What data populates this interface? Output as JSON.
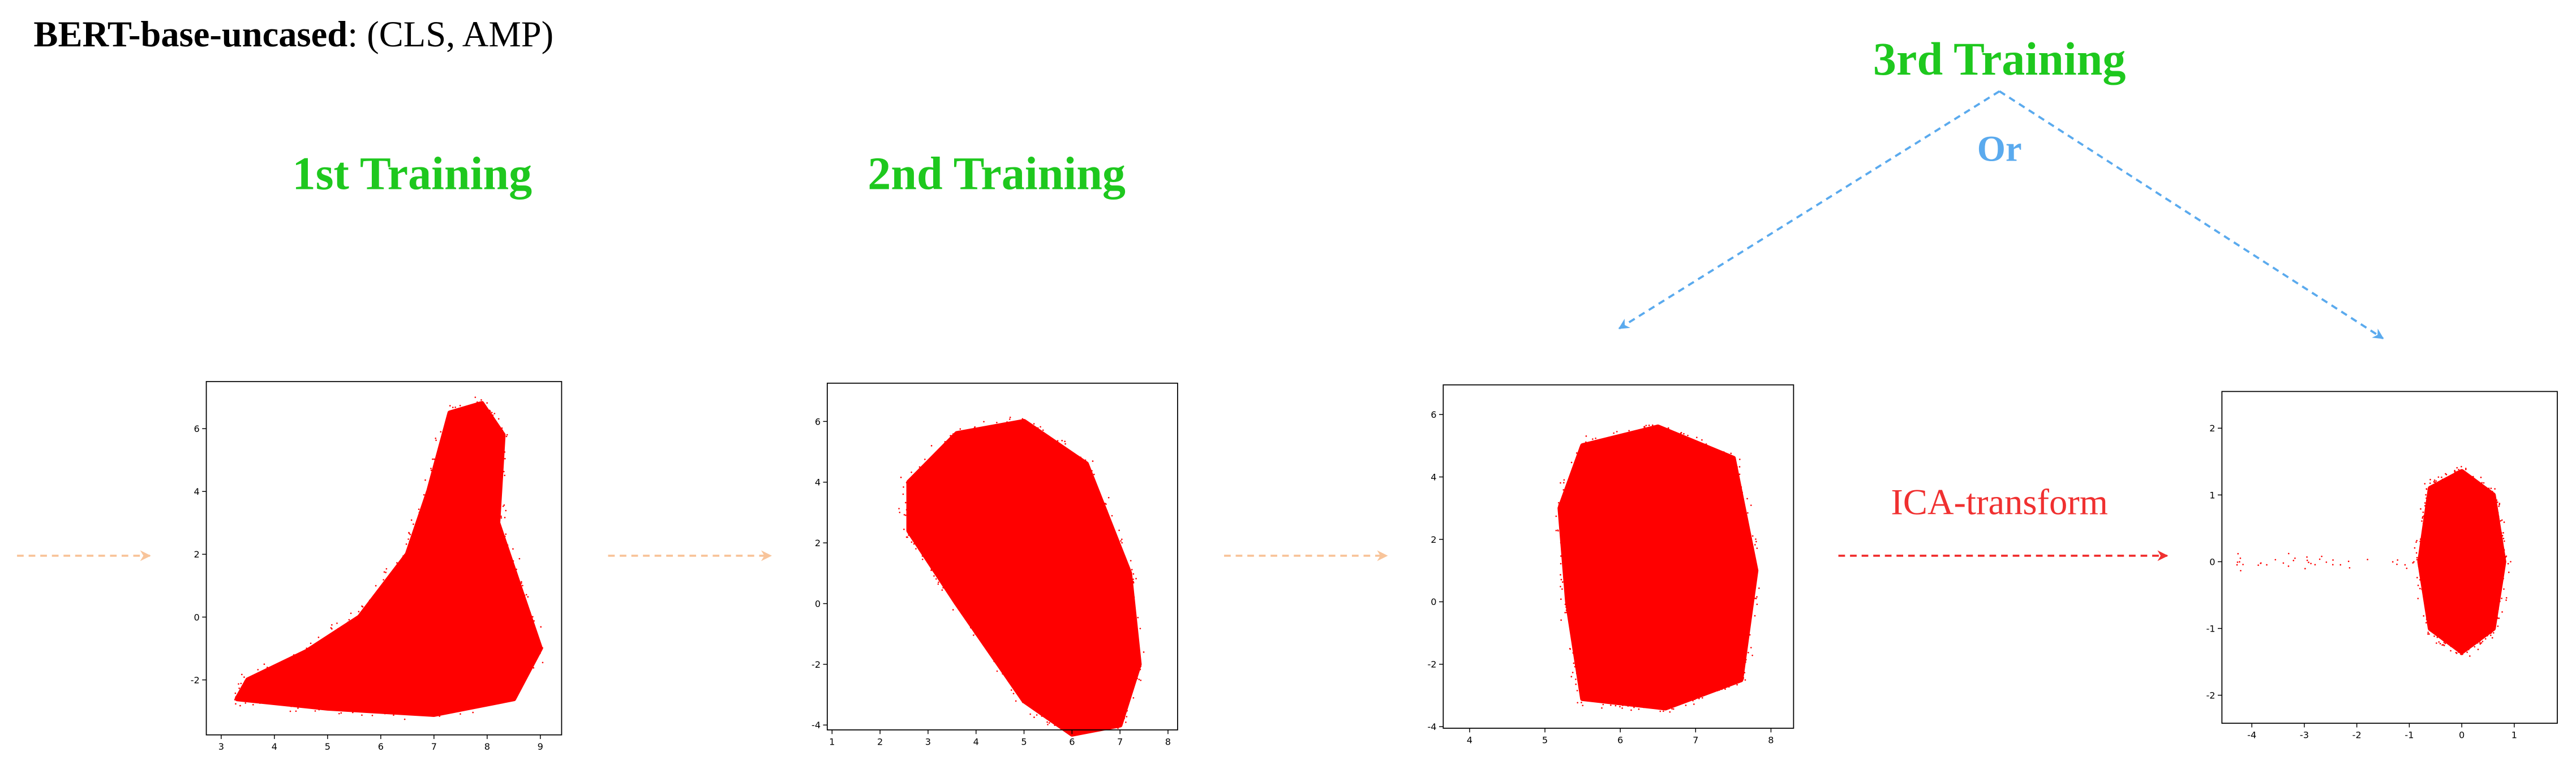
{
  "header": {
    "title_bold": "BERT-base-uncased",
    "title_rest": ": (CLS, AMP)"
  },
  "stages": [
    {
      "label": "1st Training"
    },
    {
      "label": "2nd Training"
    },
    {
      "label": "3rd Training"
    }
  ],
  "or_label": "Or",
  "transform_label": "ICA-transform",
  "plots": [
    {
      "xlim": [
        2.72,
        9.4
      ],
      "ylim": [
        -3.75,
        7.5
      ],
      "xticks": [
        3,
        4,
        5,
        6,
        7,
        8,
        9
      ],
      "yticks": [
        -2,
        0,
        2,
        4,
        6
      ]
    },
    {
      "xlim": [
        0.9,
        8.2
      ],
      "ylim": [
        -4.16,
        7.26
      ],
      "xticks": [
        1,
        2,
        3,
        4,
        5,
        6,
        7,
        8
      ],
      "yticks": [
        -4,
        -2,
        0,
        2,
        4,
        6
      ]
    },
    {
      "xlim": [
        3.65,
        8.3
      ],
      "ylim": [
        -4.05,
        6.95
      ],
      "xticks": [
        4,
        5,
        6,
        7,
        8
      ],
      "yticks": [
        -4,
        -2,
        0,
        2,
        4,
        6
      ]
    },
    {
      "xlim": [
        -4.57,
        1.82
      ],
      "ylim": [
        -2.42,
        2.55
      ],
      "xticks": [
        -4,
        -3,
        -2,
        -1,
        0,
        1
      ],
      "yticks": [
        -2,
        -1,
        0,
        1,
        2
      ]
    }
  ]
}
